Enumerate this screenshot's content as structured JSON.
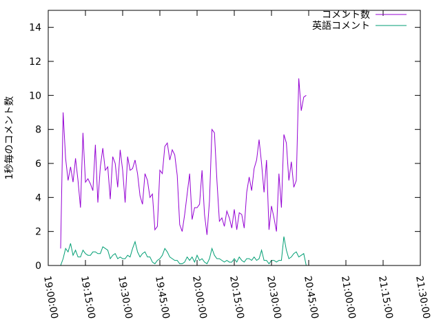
{
  "chart_data": {
    "type": "line",
    "ylabel": "1秒毎のコメント数",
    "ylim": [
      0,
      15
    ],
    "yticks": [
      0,
      2,
      4,
      6,
      8,
      10,
      12,
      14
    ],
    "xlim": [
      "19:00:00",
      "21:30:00"
    ],
    "xticks": [
      "19:00:00",
      "19:15:00",
      "19:30:00",
      "19:45:00",
      "20:00:00",
      "20:15:00",
      "20:30:00",
      "20:45:00",
      "21:00:00",
      "21:15:00",
      "21:30:00"
    ],
    "grid": false,
    "legend": "top-right",
    "series": [
      {
        "name": "コメント数",
        "color": "#9400d3",
        "points": [
          [
            "19:05:00",
            1.0
          ],
          [
            "19:06:00",
            9.0
          ],
          [
            "19:07:00",
            6.3
          ],
          [
            "19:08:00",
            5.0
          ],
          [
            "19:09:00",
            5.8
          ],
          [
            "19:10:00",
            4.9
          ],
          [
            "19:11:00",
            6.3
          ],
          [
            "19:12:00",
            5.0
          ],
          [
            "19:13:00",
            3.4
          ],
          [
            "19:14:00",
            7.8
          ],
          [
            "19:15:00",
            4.9
          ],
          [
            "19:16:00",
            5.1
          ],
          [
            "19:17:00",
            4.8
          ],
          [
            "19:18:00",
            4.4
          ],
          [
            "19:19:00",
            7.1
          ],
          [
            "19:20:00",
            3.7
          ],
          [
            "19:21:00",
            5.8
          ],
          [
            "19:22:00",
            6.9
          ],
          [
            "19:23:00",
            5.6
          ],
          [
            "19:24:00",
            5.8
          ],
          [
            "19:25:00",
            3.9
          ],
          [
            "19:26:00",
            6.4
          ],
          [
            "19:27:00",
            6.0
          ],
          [
            "19:28:00",
            4.6
          ],
          [
            "19:29:00",
            6.8
          ],
          [
            "19:30:00",
            5.6
          ],
          [
            "19:31:00",
            3.7
          ],
          [
            "19:32:00",
            6.4
          ],
          [
            "19:33:00",
            5.6
          ],
          [
            "19:34:00",
            5.7
          ],
          [
            "19:35:00",
            6.2
          ],
          [
            "19:36:00",
            5.4
          ],
          [
            "19:37:00",
            4.1
          ],
          [
            "19:38:00",
            3.6
          ],
          [
            "19:39:00",
            5.4
          ],
          [
            "19:40:00",
            5.0
          ],
          [
            "19:41:00",
            4.0
          ],
          [
            "19:42:00",
            4.2
          ],
          [
            "19:43:00",
            2.1
          ],
          [
            "19:44:00",
            2.3
          ],
          [
            "19:45:00",
            5.6
          ],
          [
            "19:46:00",
            5.4
          ],
          [
            "19:47:00",
            7.0
          ],
          [
            "19:48:00",
            7.2
          ],
          [
            "19:49:00",
            6.2
          ],
          [
            "19:50:00",
            6.8
          ],
          [
            "19:51:00",
            6.5
          ],
          [
            "19:52:00",
            5.3
          ],
          [
            "19:53:00",
            2.4
          ],
          [
            "19:54:00",
            2.0
          ],
          [
            "19:55:00",
            3.0
          ],
          [
            "19:56:00",
            4.2
          ],
          [
            "19:57:00",
            5.4
          ],
          [
            "19:58:00",
            2.7
          ],
          [
            "19:59:00",
            3.4
          ],
          [
            "20:00:00",
            3.4
          ],
          [
            "20:01:00",
            3.6
          ],
          [
            "20:02:00",
            5.6
          ],
          [
            "20:03:00",
            3.0
          ],
          [
            "20:04:00",
            1.8
          ],
          [
            "20:05:00",
            3.8
          ],
          [
            "20:06:00",
            8.0
          ],
          [
            "20:07:00",
            7.8
          ],
          [
            "20:08:00",
            5.0
          ],
          [
            "20:09:00",
            2.6
          ],
          [
            "20:10:00",
            2.8
          ],
          [
            "20:11:00",
            2.3
          ],
          [
            "20:12:00",
            3.2
          ],
          [
            "20:13:00",
            2.8
          ],
          [
            "20:14:00",
            2.2
          ],
          [
            "20:15:00",
            3.3
          ],
          [
            "20:16:00",
            2.1
          ],
          [
            "20:17:00",
            3.1
          ],
          [
            "20:18:00",
            3.0
          ],
          [
            "20:19:00",
            2.2
          ],
          [
            "20:20:00",
            4.3
          ],
          [
            "20:21:00",
            5.2
          ],
          [
            "20:22:00",
            4.4
          ],
          [
            "20:23:00",
            5.7
          ],
          [
            "20:24:00",
            6.2
          ],
          [
            "20:25:00",
            7.4
          ],
          [
            "20:26:00",
            6.0
          ],
          [
            "20:27:00",
            4.3
          ],
          [
            "20:28:00",
            6.2
          ],
          [
            "20:29:00",
            2.1
          ],
          [
            "20:30:00",
            3.5
          ],
          [
            "20:31:00",
            2.8
          ],
          [
            "20:32:00",
            2.0
          ],
          [
            "20:33:00",
            5.4
          ],
          [
            "20:34:00",
            3.4
          ],
          [
            "20:35:00",
            7.7
          ],
          [
            "20:36:00",
            7.2
          ],
          [
            "20:37:00",
            5.0
          ],
          [
            "20:38:00",
            6.1
          ],
          [
            "20:39:00",
            4.6
          ],
          [
            "20:40:00",
            5.0
          ],
          [
            "20:41:00",
            11.0
          ],
          [
            "20:42:00",
            9.1
          ],
          [
            "20:43:00",
            9.9
          ],
          [
            "20:44:00",
            10.0
          ]
        ]
      },
      {
        "name": "英語コメント",
        "color": "#009e73",
        "points": [
          [
            "19:05:00",
            0.0
          ],
          [
            "19:06:00",
            0.4
          ],
          [
            "19:07:00",
            1.0
          ],
          [
            "19:08:00",
            0.8
          ],
          [
            "19:09:00",
            1.3
          ],
          [
            "19:10:00",
            0.6
          ],
          [
            "19:11:00",
            0.9
          ],
          [
            "19:12:00",
            0.5
          ],
          [
            "19:13:00",
            0.5
          ],
          [
            "19:14:00",
            0.9
          ],
          [
            "19:15:00",
            0.7
          ],
          [
            "19:16:00",
            0.6
          ],
          [
            "19:17:00",
            0.6
          ],
          [
            "19:18:00",
            0.8
          ],
          [
            "19:19:00",
            0.8
          ],
          [
            "19:20:00",
            0.7
          ],
          [
            "19:21:00",
            0.7
          ],
          [
            "19:22:00",
            1.1
          ],
          [
            "19:23:00",
            1.0
          ],
          [
            "19:24:00",
            0.9
          ],
          [
            "19:25:00",
            0.4
          ],
          [
            "19:26:00",
            0.6
          ],
          [
            "19:27:00",
            0.7
          ],
          [
            "19:28:00",
            0.4
          ],
          [
            "19:29:00",
            0.5
          ],
          [
            "19:30:00",
            0.4
          ],
          [
            "19:31:00",
            0.4
          ],
          [
            "19:32:00",
            0.6
          ],
          [
            "19:33:00",
            0.5
          ],
          [
            "19:34:00",
            1.0
          ],
          [
            "19:35:00",
            1.4
          ],
          [
            "19:36:00",
            0.8
          ],
          [
            "19:37:00",
            0.5
          ],
          [
            "19:38:00",
            0.7
          ],
          [
            "19:39:00",
            0.8
          ],
          [
            "19:40:00",
            0.5
          ],
          [
            "19:41:00",
            0.5
          ],
          [
            "19:42:00",
            0.2
          ],
          [
            "19:43:00",
            0.1
          ],
          [
            "19:44:00",
            0.3
          ],
          [
            "19:45:00",
            0.4
          ],
          [
            "19:46:00",
            0.6
          ],
          [
            "19:47:00",
            1.0
          ],
          [
            "19:48:00",
            0.8
          ],
          [
            "19:49:00",
            0.5
          ],
          [
            "19:50:00",
            0.4
          ],
          [
            "19:51:00",
            0.3
          ],
          [
            "19:52:00",
            0.3
          ],
          [
            "19:53:00",
            0.1
          ],
          [
            "19:54:00",
            0.1
          ],
          [
            "19:55:00",
            0.2
          ],
          [
            "19:56:00",
            0.5
          ],
          [
            "19:57:00",
            0.3
          ],
          [
            "19:58:00",
            0.5
          ],
          [
            "19:59:00",
            0.2
          ],
          [
            "20:00:00",
            0.6
          ],
          [
            "20:01:00",
            0.3
          ],
          [
            "20:02:00",
            0.4
          ],
          [
            "20:03:00",
            0.2
          ],
          [
            "20:04:00",
            0.1
          ],
          [
            "20:05:00",
            0.4
          ],
          [
            "20:06:00",
            1.0
          ],
          [
            "20:07:00",
            0.6
          ],
          [
            "20:08:00",
            0.4
          ],
          [
            "20:09:00",
            0.4
          ],
          [
            "20:10:00",
            0.3
          ],
          [
            "20:11:00",
            0.2
          ],
          [
            "20:12:00",
            0.3
          ],
          [
            "20:13:00",
            0.2
          ],
          [
            "20:14:00",
            0.2
          ],
          [
            "20:15:00",
            0.4
          ],
          [
            "20:16:00",
            0.2
          ],
          [
            "20:17:00",
            0.5
          ],
          [
            "20:18:00",
            0.3
          ],
          [
            "20:19:00",
            0.2
          ],
          [
            "20:20:00",
            0.4
          ],
          [
            "20:21:00",
            0.4
          ],
          [
            "20:22:00",
            0.3
          ],
          [
            "20:23:00",
            0.5
          ],
          [
            "20:24:00",
            0.3
          ],
          [
            "20:25:00",
            0.4
          ],
          [
            "20:26:00",
            0.9
          ],
          [
            "20:27:00",
            0.3
          ],
          [
            "20:28:00",
            0.3
          ],
          [
            "20:29:00",
            0.1
          ],
          [
            "20:30:00",
            0.3
          ],
          [
            "20:31:00",
            0.3
          ],
          [
            "20:32:00",
            0.2
          ],
          [
            "20:33:00",
            0.3
          ],
          [
            "20:34:00",
            0.3
          ],
          [
            "20:35:00",
            1.7
          ],
          [
            "20:36:00",
            0.9
          ],
          [
            "20:37:00",
            0.4
          ],
          [
            "20:38:00",
            0.5
          ],
          [
            "20:39:00",
            0.7
          ],
          [
            "20:40:00",
            0.8
          ],
          [
            "20:41:00",
            0.5
          ],
          [
            "20:42:00",
            0.6
          ],
          [
            "20:43:00",
            0.7
          ],
          [
            "20:44:00",
            0.0
          ]
        ]
      }
    ]
  }
}
